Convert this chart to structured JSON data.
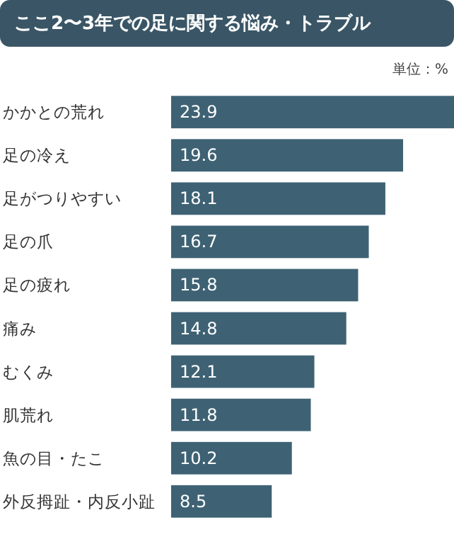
{
  "chart_data": {
    "type": "bar",
    "orientation": "horizontal",
    "title": "ここ2〜3年での足に関する悩み・トラブル",
    "annotations": [
      "単位：%"
    ],
    "categories": [
      "かかとの荒れ",
      "足の冷え",
      "足がつりやすい",
      "足の爪",
      "足の疲れ",
      "痛み",
      "むくみ",
      "肌荒れ",
      "魚の目・たこ",
      "外反拇趾・内反小趾"
    ],
    "values": [
      23.9,
      19.6,
      18.1,
      16.7,
      15.8,
      14.8,
      12.1,
      11.8,
      10.2,
      8.5
    ],
    "color": "#3e6274",
    "data_labels": true
  }
}
